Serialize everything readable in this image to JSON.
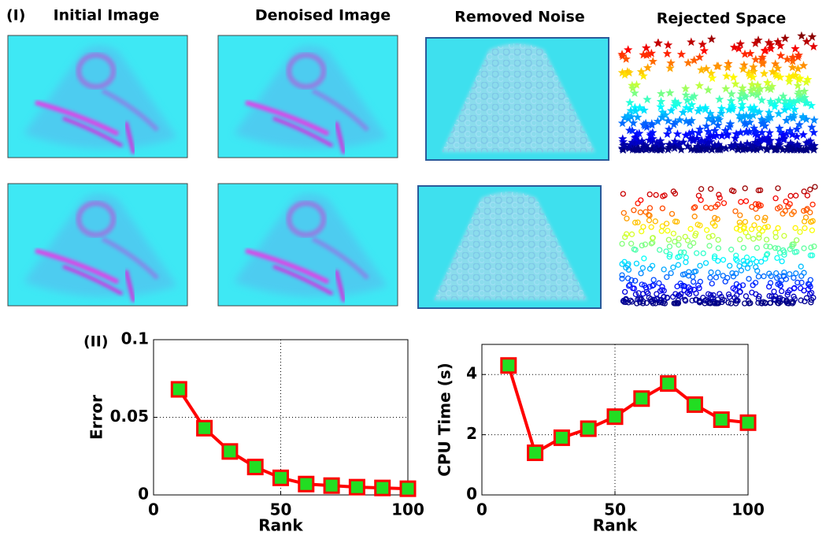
{
  "figure": {
    "panel_labels": [
      "(I)",
      "(II)"
    ],
    "image_titles": [
      "Initial Image",
      "Denoised Image",
      "Removed Noise",
      "Rejected Space"
    ]
  },
  "chart_data": [
    {
      "type": "line",
      "xlabel": "Rank",
      "ylabel": "Error",
      "x": [
        10,
        20,
        30,
        40,
        50,
        60,
        70,
        80,
        90,
        100
      ],
      "series": [
        {
          "color": "#ff0000",
          "values": [
            0.068,
            0.043,
            0.028,
            0.018,
            0.011,
            0.007,
            0.006,
            0.005,
            0.0045,
            0.004
          ]
        }
      ],
      "marker_color": "#22dd22",
      "xlim": [
        0,
        100
      ],
      "xticks": [
        0,
        50,
        100
      ],
      "ylim": [
        0,
        0.1
      ],
      "yticks": [
        0,
        0.05,
        0.1
      ],
      "grid": true
    },
    {
      "type": "line",
      "xlabel": "Rank",
      "ylabel": "CPU Time (s)",
      "x": [
        10,
        20,
        30,
        40,
        50,
        60,
        70,
        80,
        90,
        100
      ],
      "series": [
        {
          "color": "#ff0000",
          "values": [
            4.3,
            1.4,
            1.9,
            2.2,
            2.6,
            3.2,
            3.7,
            3.0,
            2.5,
            2.4
          ]
        }
      ],
      "marker_color": "#22dd22",
      "xlim": [
        0,
        100
      ],
      "xticks": [
        0,
        50,
        100
      ],
      "ylim": [
        0,
        5
      ],
      "yticks": [
        0,
        2,
        4
      ],
      "grid": true
    }
  ]
}
